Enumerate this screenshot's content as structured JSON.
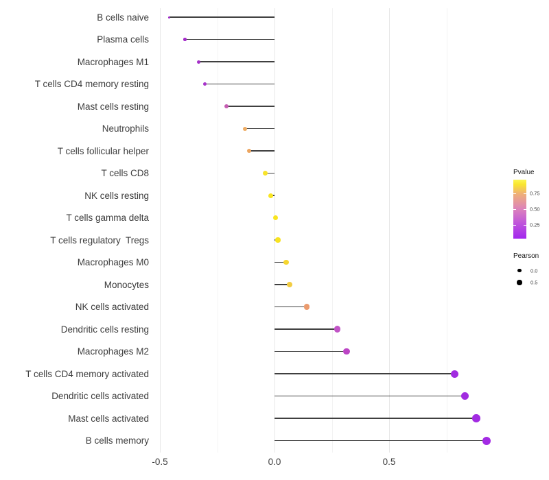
{
  "chart_data": {
    "type": "scatter",
    "variant": "lollipop",
    "title": "",
    "xlabel": "",
    "ylabel": "",
    "grid": "vertical-only",
    "x_axis": {
      "range": [
        -0.55,
        0.97
      ],
      "ticks": [
        -0.5,
        0.0,
        0.5
      ],
      "tick_labels": [
        "-0.5",
        "0.0",
        "0.5"
      ],
      "minor_ticks": [
        -0.25,
        0.25,
        0.75
      ]
    },
    "baseline_x": 0.0,
    "rows": [
      {
        "label": "B cells naive",
        "pearson": -0.46,
        "color": "#9c28c6",
        "diameter": 3.0
      },
      {
        "label": "Plasma cells",
        "pearson": -0.39,
        "color": "#a42bc9",
        "diameter": 4.5
      },
      {
        "label": "Macrophages M1",
        "pearson": -0.33,
        "color": "#a530c8",
        "diameter": 5.0
      },
      {
        "label": "T cells CD4 memory resting",
        "pearson": -0.305,
        "color": "#a733ca",
        "diameter": 5.2
      },
      {
        "label": "Mast cells resting",
        "pearson": -0.21,
        "color": "#c55cb2",
        "diameter": 6.0
      },
      {
        "label": "Neutrophils",
        "pearson": -0.13,
        "color": "#eeac64",
        "diameter": 6.0
      },
      {
        "label": "T cells follicular helper",
        "pearson": -0.11,
        "color": "#eca55f",
        "diameter": 6.3
      },
      {
        "label": "T cells CD8",
        "pearson": -0.04,
        "color": "#f8e32a",
        "diameter": 7.0
      },
      {
        "label": "NK cells resting",
        "pearson": -0.015,
        "color": "#f9e522",
        "diameter": 7.0
      },
      {
        "label": "T cells gamma delta",
        "pearson": 0.005,
        "color": "#f9e41f",
        "diameter": 7.2
      },
      {
        "label": "T cells regulatory  Tregs",
        "pearson": 0.015,
        "color": "#f8e321",
        "diameter": 7.2
      },
      {
        "label": "Macrophages M0",
        "pearson": 0.05,
        "color": "#f6d62f",
        "diameter": 7.8
      },
      {
        "label": "Monocytes",
        "pearson": 0.065,
        "color": "#f2cc41",
        "diameter": 8.0
      },
      {
        "label": "NK cells activated",
        "pearson": 0.14,
        "color": "#eb9b6e",
        "diameter": 8.3
      },
      {
        "label": "Dendritic cells resting",
        "pearson": 0.275,
        "color": "#c154c6",
        "diameter": 9.3
      },
      {
        "label": "Macrophages M2",
        "pearson": 0.315,
        "color": "#bc45c5",
        "diameter": 9.6
      },
      {
        "label": "T cells CD4 memory activated",
        "pearson": 0.785,
        "color": "#a12ce0",
        "diameter": 11.0
      },
      {
        "label": "Dendritic cells activated",
        "pearson": 0.83,
        "color": "#a12ce0",
        "diameter": 11.3
      },
      {
        "label": "Mast cells activated",
        "pearson": 0.88,
        "color": "#a22be2",
        "diameter": 11.6
      },
      {
        "label": "B cells memory",
        "pearson": 0.925,
        "color": "#a32ae4",
        "diameter": 12.0
      }
    ],
    "legend": {
      "pvalue": {
        "title": "Pvalue",
        "tick_labels": [
          "0.75",
          "0.50",
          "0.25"
        ],
        "gradient_stops": [
          {
            "pos": 0.0,
            "color": "#a227ee"
          },
          {
            "pos": 0.25,
            "color": "#be53dc"
          },
          {
            "pos": 0.5,
            "color": "#dc82bc"
          },
          {
            "pos": 0.76,
            "color": "#efb078"
          },
          {
            "pos": 0.92,
            "color": "#f9e62e"
          },
          {
            "pos": 1.0,
            "color": "#fcf554"
          }
        ]
      },
      "pearson": {
        "title": "Pearson",
        "items": [
          {
            "label": "0.0",
            "diameter": 5.5
          },
          {
            "label": "0.5",
            "diameter": 7.2
          }
        ]
      }
    },
    "colors": {
      "segment": "#3f3f3f",
      "grid_major": "#e7e7e7",
      "grid_minor": "#f3f3f3",
      "axis_text": "#3c3c3c"
    }
  }
}
